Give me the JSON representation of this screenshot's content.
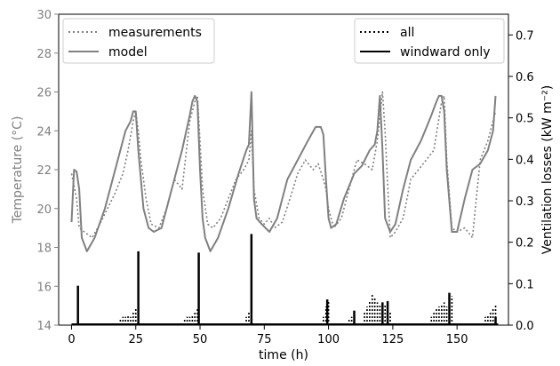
{
  "chart_data": {
    "type": "line",
    "title": "",
    "xlabel": "time (h)",
    "ylabel_left": "Temperature (°C)",
    "ylabel_right": "Ventilation losses (kW m⁻²)",
    "xlim": [
      -5,
      170
    ],
    "ylim_left": [
      14,
      30
    ],
    "ylim_right": [
      0,
      0.75
    ],
    "x_ticks": [
      0,
      25,
      50,
      75,
      100,
      125,
      150
    ],
    "y_left_ticks": [
      14,
      16,
      18,
      20,
      22,
      24,
      26,
      28,
      30
    ],
    "y_right_ticks": [
      0.0,
      0.1,
      0.2,
      0.3,
      0.4,
      0.5,
      0.6,
      0.7
    ],
    "grid": false,
    "legends": [
      {
        "placement": "top-left",
        "entries": [
          "measurements",
          "model"
        ]
      },
      {
        "placement": "top-right",
        "entries": [
          "all",
          "windward only"
        ]
      }
    ],
    "colors": {
      "temperature": "#808080",
      "ventilation": "#000000",
      "left_axis_text": "#808080"
    },
    "series": [
      {
        "name": "measurements",
        "axis": "left",
        "style": "dotted",
        "x": [
          0,
          2,
          3,
          5,
          8,
          11,
          14,
          17,
          20,
          22,
          24,
          25,
          26,
          27,
          29,
          31,
          34,
          37,
          40,
          43,
          46,
          48,
          49,
          50,
          51,
          53,
          55,
          58,
          61,
          64,
          67,
          69,
          70,
          71,
          73,
          75,
          77,
          79,
          82,
          85,
          88,
          91,
          94,
          96,
          98,
          99,
          100,
          102,
          105,
          108,
          111,
          114,
          117,
          119,
          121,
          122,
          124,
          126,
          129,
          132,
          135,
          138,
          141,
          144,
          145,
          146,
          148,
          150,
          153,
          156,
          159,
          162,
          165
        ],
        "y": [
          21.8,
          20.5,
          19.0,
          18.8,
          18.5,
          19.2,
          20.0,
          20.8,
          21.8,
          23.0,
          24.5,
          25.0,
          24.0,
          22.5,
          20.5,
          19.2,
          19.0,
          20.0,
          21.5,
          21.0,
          24.5,
          25.5,
          25.8,
          23.5,
          21.0,
          19.2,
          19.0,
          19.5,
          20.5,
          21.5,
          22.0,
          22.5,
          24.0,
          21.0,
          19.5,
          19.2,
          19.5,
          19.0,
          19.3,
          20.5,
          21.8,
          22.5,
          22.0,
          22.3,
          21.5,
          21.0,
          20.0,
          19.0,
          19.5,
          21.0,
          22.5,
          22.3,
          22.0,
          23.5,
          26.0,
          24.0,
          18.5,
          18.8,
          19.5,
          21.5,
          22.0,
          22.5,
          23.0,
          25.5,
          25.8,
          22.5,
          19.0,
          18.8,
          19.0,
          18.5,
          22.5,
          23.5,
          25.0
        ]
      },
      {
        "name": "model",
        "axis": "left",
        "style": "solid",
        "x": [
          0,
          1,
          2,
          3,
          4,
          6,
          9,
          13,
          17,
          21,
          23,
          24,
          25,
          26,
          27,
          28,
          30,
          32,
          35,
          39,
          43,
          46,
          47,
          48,
          49,
          50,
          51,
          52,
          54,
          57,
          61,
          65,
          68,
          69,
          70,
          71,
          72,
          74,
          77,
          80,
          84,
          88,
          92,
          95,
          97,
          98,
          99,
          100,
          101,
          103,
          106,
          110,
          113,
          116,
          118,
          119,
          120,
          121,
          122,
          124,
          126,
          129,
          132,
          136,
          140,
          142,
          143,
          144,
          145,
          146,
          148,
          150,
          153,
          156,
          159,
          162,
          164,
          165
        ],
        "y": [
          19.3,
          22.0,
          21.9,
          21.0,
          18.5,
          17.8,
          18.5,
          20.0,
          22.0,
          24.0,
          24.5,
          25.0,
          25.0,
          23.0,
          21.5,
          20.0,
          19.0,
          18.8,
          19.0,
          21.0,
          23.0,
          24.8,
          25.5,
          25.8,
          25.5,
          22.0,
          19.5,
          18.5,
          17.8,
          18.5,
          20.0,
          21.8,
          23.0,
          23.3,
          26.0,
          20.5,
          19.5,
          19.2,
          18.8,
          19.5,
          21.5,
          22.5,
          23.5,
          24.2,
          24.2,
          23.8,
          21.5,
          19.5,
          19.0,
          19.2,
          20.5,
          21.8,
          22.2,
          23.0,
          23.3,
          24.0,
          25.8,
          23.0,
          19.5,
          18.8,
          19.2,
          21.0,
          22.5,
          23.5,
          24.8,
          25.5,
          25.8,
          25.8,
          25.0,
          22.0,
          18.8,
          18.8,
          20.5,
          22.0,
          22.3,
          23.0,
          24.0,
          25.8
        ]
      },
      {
        "name": "all",
        "axis": "right",
        "style": "dotted",
        "x": [
          19,
          20,
          21,
          22,
          23,
          24,
          25,
          44,
          45,
          46,
          47,
          48,
          49,
          68,
          69,
          70,
          98,
          99,
          100,
          108,
          109,
          110,
          114,
          115,
          116,
          117,
          118,
          119,
          120,
          121,
          122,
          123,
          124,
          140,
          141,
          142,
          143,
          144,
          145,
          146,
          147,
          148,
          161,
          162,
          163,
          164,
          165
        ],
        "y": [
          0.015,
          0.02,
          0.02,
          0.025,
          0.02,
          0.03,
          0.04,
          0.015,
          0.02,
          0.02,
          0.025,
          0.03,
          0.04,
          0.02,
          0.03,
          0.05,
          0.02,
          0.045,
          0.06,
          0.015,
          0.02,
          0.02,
          0.03,
          0.045,
          0.06,
          0.075,
          0.065,
          0.055,
          0.05,
          0.045,
          0.05,
          0.04,
          0.03,
          0.02,
          0.03,
          0.04,
          0.045,
          0.05,
          0.055,
          0.045,
          0.06,
          0.07,
          0.02,
          0.025,
          0.03,
          0.04,
          0.05
        ]
      },
      {
        "name": "windward only",
        "axis": "right",
        "style": "solid",
        "x": [
          2.5,
          26,
          49.5,
          70,
          99.5,
          110,
          121,
          123,
          147,
          165
        ],
        "y": [
          0.095,
          0.178,
          0.175,
          0.22,
          0.062,
          0.035,
          0.055,
          0.058,
          0.078,
          0.02
        ]
      }
    ]
  }
}
